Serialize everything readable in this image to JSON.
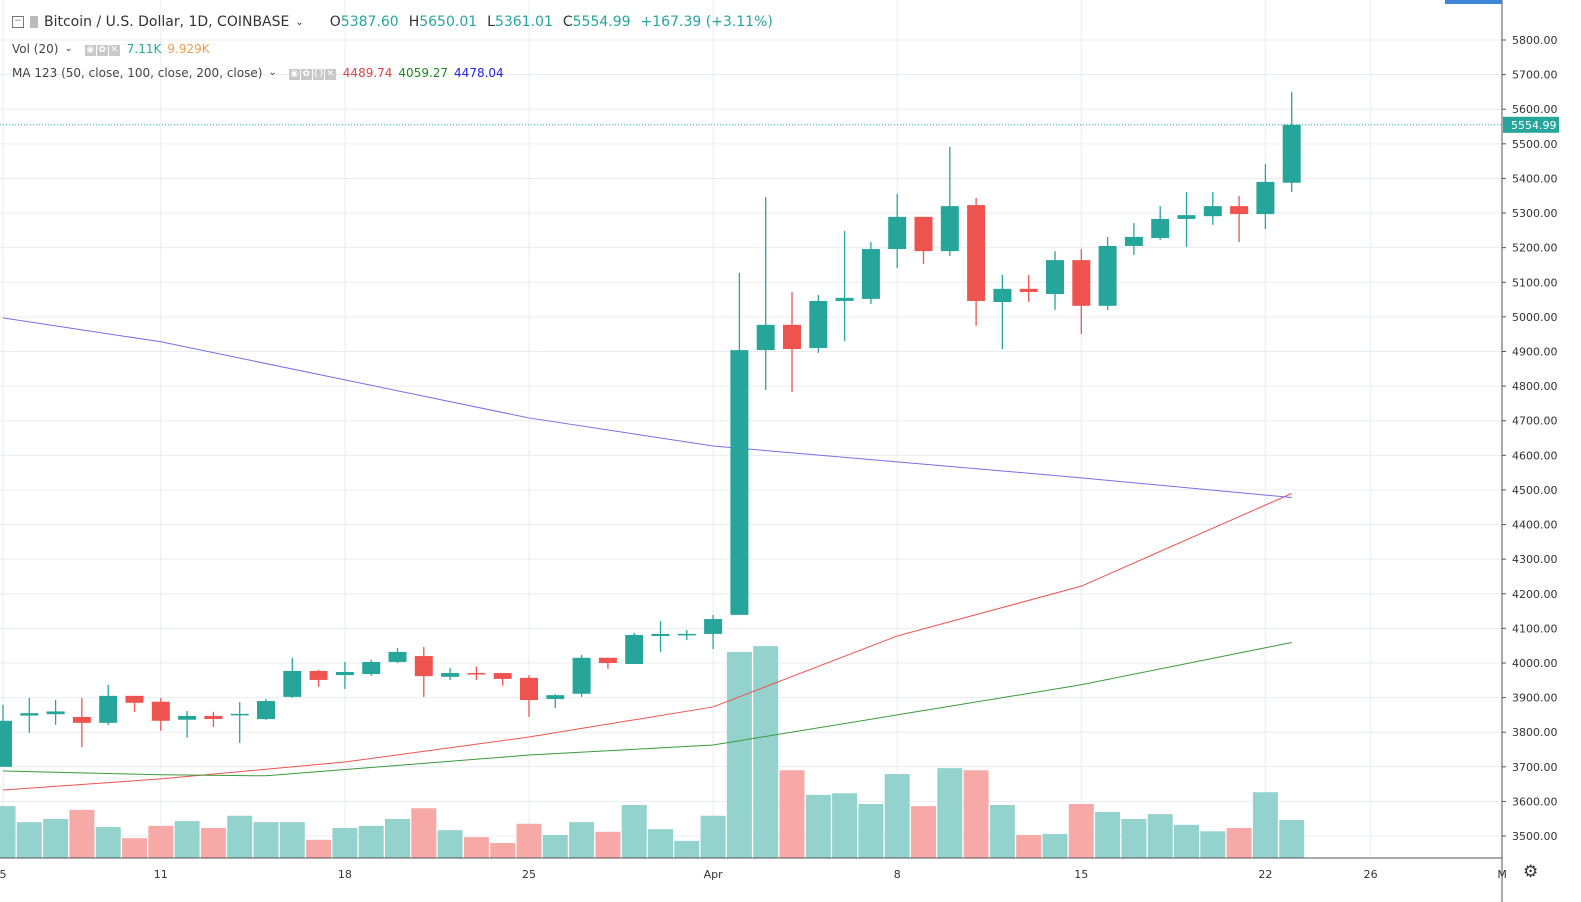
{
  "header": {
    "symbol": "Bitcoin / U.S. Dollar, 1D, COINBASE",
    "open_label": "O",
    "open": "5387.60",
    "high_label": "H",
    "high": "5650.01",
    "low_label": "L",
    "low": "5361.01",
    "close_label": "C",
    "close": "5554.99",
    "change": "+167.39 (+3.11%)"
  },
  "volume_legend": {
    "name": "Vol (20)",
    "value": "7.11K",
    "ma_value": "9.929K"
  },
  "ma_legend": {
    "name": "MA 123 (50, close, 100, close, 200, close)",
    "ma50": "4489.74",
    "ma100": "4059.27",
    "ma200": "4478.04"
  },
  "colors": {
    "up": "#26a69a",
    "down": "#ef5350",
    "vol_up": "#94d3cd",
    "vol_down": "#f7a9a7",
    "ma50": "#ef5350",
    "ma100": "#3c9a3c",
    "ma200": "#7b6ee8",
    "grid": "#e9edf1"
  },
  "icons": {
    "collapse": "minus-square-icon",
    "eye": "eye-icon",
    "settings": "gear-icon",
    "close": "close-icon",
    "source": "braces-icon"
  },
  "chart_data": {
    "type": "candlestick",
    "title": "Bitcoin / U.S. Dollar, 1D, COINBASE",
    "ylim": [
      3430,
      5880
    ],
    "grid": true,
    "y_ticks": [
      "5800.00",
      "5700.00",
      "5600.00",
      "5500.00",
      "5400.00",
      "5300.00",
      "5200.00",
      "5100.00",
      "5000.00",
      "4900.00",
      "4800.00",
      "4700.00",
      "4600.00",
      "4500.00",
      "4400.00",
      "4300.00",
      "4200.00",
      "4100.00",
      "4000.00",
      "3900.00",
      "3800.00",
      "3700.00",
      "3600.00",
      "3500.00"
    ],
    "x_ticks": [
      {
        "index": 0,
        "label": "5"
      },
      {
        "index": 6,
        "label": "11"
      },
      {
        "index": 13,
        "label": "18"
      },
      {
        "index": 20,
        "label": "25"
      },
      {
        "index": 27,
        "label": "Apr"
      },
      {
        "index": 34,
        "label": "8"
      },
      {
        "index": 41,
        "label": "15"
      },
      {
        "index": 48,
        "label": "22"
      },
      {
        "index": 52,
        "label": "26"
      },
      {
        "index": 57,
        "label": "M"
      }
    ],
    "last_price_label": "5554.99",
    "candles": [
      [
        3700,
        3879,
        3700,
        3833
      ],
      [
        3848,
        3899,
        3798,
        3855
      ],
      [
        3852,
        3893,
        3821,
        3860
      ],
      [
        3844,
        3899,
        3757,
        3827
      ],
      [
        3827,
        3937,
        3821,
        3905
      ],
      [
        3905,
        3905,
        3859,
        3885
      ],
      [
        3888,
        3899,
        3804,
        3833
      ],
      [
        3836,
        3861,
        3784,
        3847
      ],
      [
        3847,
        3859,
        3815,
        3838
      ],
      [
        3850,
        3887,
        3769,
        3853
      ],
      [
        3838,
        3896,
        3835,
        3890
      ],
      [
        3902,
        4015,
        3899,
        3977
      ],
      [
        3977,
        3980,
        3931,
        3951
      ],
      [
        3965,
        4003,
        3925,
        3974
      ],
      [
        3968,
        4009,
        3963,
        4003
      ],
      [
        4003,
        4043,
        4000,
        4032
      ],
      [
        4020,
        4046,
        3902,
        3962
      ],
      [
        3960,
        3986,
        3951,
        3971
      ],
      [
        3971,
        3990,
        3951,
        3968
      ],
      [
        3971,
        3971,
        3934,
        3954
      ],
      [
        3957,
        3965,
        3844,
        3893
      ],
      [
        3896,
        3910,
        3870,
        3907
      ],
      [
        3911,
        4023,
        3902,
        4015
      ],
      [
        4015,
        4015,
        3983,
        4000
      ],
      [
        3997,
        4087,
        3997,
        4081
      ],
      [
        4078,
        4121,
        4032,
        4084
      ],
      [
        4081,
        4095,
        4066,
        4084
      ],
      [
        4084,
        4139,
        4040,
        4127
      ],
      [
        4139,
        5127,
        4139,
        4904
      ],
      [
        4904,
        5346,
        4789,
        4977
      ],
      [
        4977,
        5072,
        4783,
        4907
      ],
      [
        4910,
        5063,
        4896,
        5046
      ],
      [
        5046,
        5248,
        4930,
        5055
      ],
      [
        5052,
        5216,
        5037,
        5196
      ],
      [
        5196,
        5355,
        5141,
        5289
      ],
      [
        5289,
        5289,
        5153,
        5190
      ],
      [
        5190,
        5491,
        5176,
        5320
      ],
      [
        5323,
        5344,
        4974,
        5046
      ],
      [
        5043,
        5121,
        4907,
        5081
      ],
      [
        5081,
        5121,
        5043,
        5072
      ],
      [
        5066,
        5190,
        5020,
        5164
      ],
      [
        5164,
        5196,
        4951,
        5032
      ],
      [
        5032,
        5231,
        5020,
        5205
      ],
      [
        5205,
        5271,
        5179,
        5231
      ],
      [
        5228,
        5320,
        5222,
        5283
      ],
      [
        5283,
        5361,
        5202,
        5294
      ],
      [
        5291,
        5361,
        5266,
        5320
      ],
      [
        5320,
        5349,
        5216,
        5297
      ],
      [
        5297,
        5442,
        5254,
        5390
      ],
      [
        5387.6,
        5650.01,
        5361.01,
        5554.99
      ]
    ],
    "volume_k": [
      9.7,
      6.7,
      7.3,
      9.0,
      5.8,
      3.7,
      6.0,
      6.9,
      5.6,
      7.9,
      6.7,
      6.7,
      3.4,
      5.6,
      6.0,
      7.3,
      9.3,
      5.2,
      3.9,
      2.8,
      6.4,
      4.3,
      6.7,
      4.9,
      9.9,
      5.4,
      3.2,
      7.9,
      38.5,
      39.6,
      16.4,
      11.8,
      12.1,
      10.1,
      15.7,
      9.7,
      16.8,
      16.4,
      9.9,
      4.3,
      4.5,
      10.1,
      8.6,
      7.3,
      8.2,
      6.2,
      5.0,
      5.6,
      12.3,
      7.11
    ],
    "ma_series": [
      {
        "name": "MA 50",
        "points": [
          [
            0,
            3633
          ],
          [
            6,
            3665
          ],
          [
            13,
            3714
          ],
          [
            20,
            3786
          ],
          [
            27,
            3873
          ],
          [
            34,
            4078
          ],
          [
            41,
            4222
          ],
          [
            49,
            4489.74
          ]
        ]
      },
      {
        "name": "MA 100",
        "points": [
          [
            0,
            3688
          ],
          [
            6,
            3677
          ],
          [
            10,
            3674
          ],
          [
            20,
            3734
          ],
          [
            27,
            3763
          ],
          [
            34,
            3850
          ],
          [
            41,
            3937
          ],
          [
            48,
            4044
          ],
          [
            49,
            4059.27
          ]
        ]
      },
      {
        "name": "MA 200",
        "points": [
          [
            0,
            4997
          ],
          [
            6,
            4928
          ],
          [
            13,
            4818
          ],
          [
            20,
            4708
          ],
          [
            27,
            4627
          ],
          [
            34,
            4581
          ],
          [
            41,
            4535
          ],
          [
            49,
            4478.04
          ]
        ]
      }
    ]
  }
}
